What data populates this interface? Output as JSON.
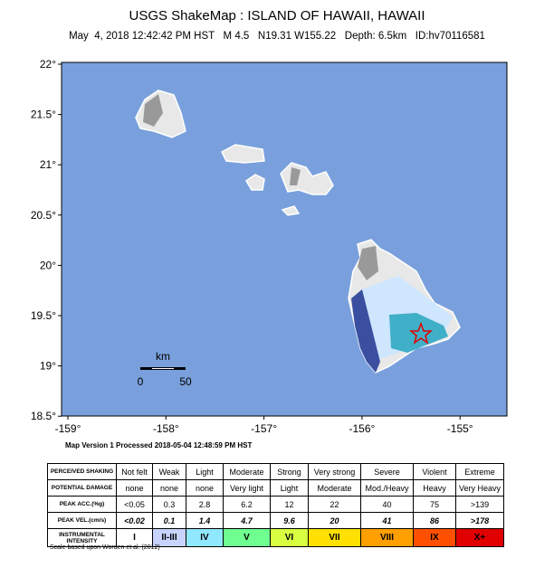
{
  "header": {
    "title": "USGS ShakeMap : ISLAND OF HAWAII, HAWAII",
    "subtitle": "May  4, 2018 12:42:42 PM HST   M 4.5   N19.31 W155.22   Depth: 6.5km   ID:hv70116581"
  },
  "map": {
    "lat_labels": [
      "22°",
      "21.5°",
      "21°",
      "20.5°",
      "20°",
      "19.5°",
      "19°",
      "18.5°"
    ],
    "lon_labels": [
      "-159°",
      "-158°",
      "-157°",
      "-156°",
      "-155°"
    ],
    "scale": {
      "unit": "km",
      "labels": [
        "0",
        "50"
      ]
    }
  },
  "processed": "Map Version 1 Processed 2018-05-04 12:48:59 PM HST",
  "table": {
    "rows": [
      {
        "label": "PERCEIVED SHAKING",
        "cells": [
          "Not felt",
          "Weak",
          "Light",
          "Moderate",
          "Strong",
          "Very strong",
          "Severe",
          "Violent",
          "Extreme"
        ]
      },
      {
        "label": "POTENTIAL DAMAGE",
        "cells": [
          "none",
          "none",
          "none",
          "Very light",
          "Light",
          "Moderate",
          "Mod./Heavy",
          "Heavy",
          "Very Heavy"
        ]
      },
      {
        "label": "PEAK ACC.(%g)",
        "cells": [
          "<0.05",
          "0.3",
          "2.8",
          "6.2",
          "12",
          "22",
          "40",
          "75",
          ">139"
        ]
      },
      {
        "label": "PEAK VEL.(cm/s)",
        "cells": [
          "<0.02",
          "0.1",
          "1.4",
          "4.7",
          "9.6",
          "20",
          "41",
          "86",
          ">178"
        ]
      },
      {
        "label": "INSTRUMENTAL INTENSITY",
        "cells": [
          "I",
          "II-III",
          "IV",
          "V",
          "VI",
          "VII",
          "VIII",
          "IX",
          "X+"
        ]
      }
    ]
  },
  "footer": "Scale based upon Worden et al. (2012)"
}
